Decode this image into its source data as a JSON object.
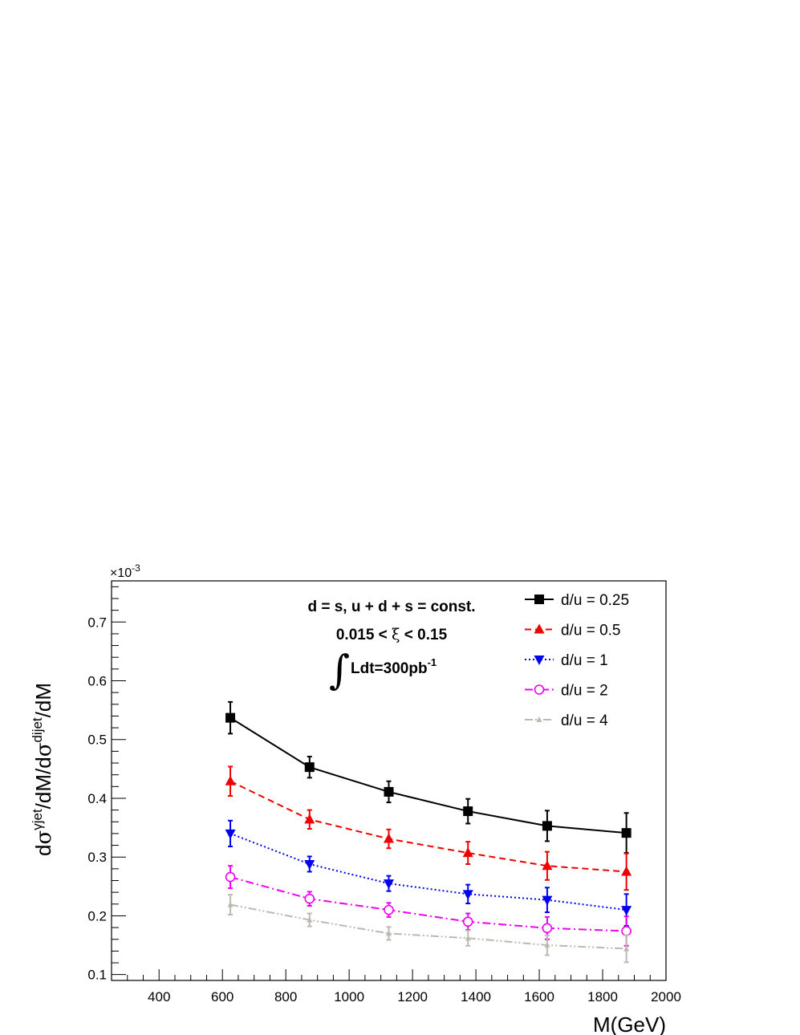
{
  "chart_data": {
    "type": "line",
    "title": "",
    "xlabel": "M(GeV)",
    "ylabel": {
      "d1": "d",
      "sigma1": "σ",
      "sup1": "γjet",
      "mid": "/dM/d",
      "sigma2": "σ",
      "sup2": "dijet",
      "end": "/dM"
    },
    "y_multiplier": {
      "base": "×10",
      "exp": "-3"
    },
    "xlim": [
      250,
      2000
    ],
    "ylim": [
      0.09,
      0.77
    ],
    "x_ticks": [
      400,
      600,
      800,
      1000,
      1200,
      1400,
      1600,
      1800,
      2000
    ],
    "y_ticks": [
      0.1,
      0.2,
      0.3,
      0.4,
      0.5,
      0.6,
      0.7
    ],
    "y_tick_labels": [
      "0.1",
      "0.2",
      "0.3",
      "0.4",
      "0.5",
      "0.6",
      "0.7"
    ],
    "x": [
      625,
      875,
      1125,
      1375,
      1625,
      1875
    ],
    "series": [
      {
        "name": "d/u = 0.25",
        "color": "#000000",
        "marker": "square",
        "dash": "",
        "values": [
          0.537,
          0.453,
          0.411,
          0.378,
          0.353,
          0.341
        ],
        "errors": [
          0.027,
          0.018,
          0.018,
          0.021,
          0.026,
          0.034
        ]
      },
      {
        "name": "d/u = 0.5",
        "color": "#ee0000",
        "marker": "triangle-up",
        "dash": "8,5",
        "values": [
          0.429,
          0.364,
          0.331,
          0.307,
          0.285,
          0.275
        ],
        "errors": [
          0.025,
          0.016,
          0.016,
          0.019,
          0.024,
          0.031
        ]
      },
      {
        "name": "d/u = 1",
        "color": "#0000ee",
        "marker": "triangle-down",
        "dash": "2,3",
        "values": [
          0.34,
          0.288,
          0.255,
          0.237,
          0.227,
          0.21
        ],
        "errors": [
          0.022,
          0.013,
          0.013,
          0.016,
          0.021,
          0.027
        ]
      },
      {
        "name": "d/u = 2",
        "color": "#ee00ee",
        "marker": "circle-open",
        "dash": "10,4,2,4",
        "values": [
          0.266,
          0.229,
          0.21,
          0.19,
          0.179,
          0.174
        ],
        "errors": [
          0.019,
          0.012,
          0.012,
          0.014,
          0.019,
          0.025
        ]
      },
      {
        "name": "d/u = 4",
        "color": "#bdb8b2",
        "marker": "triangle-small",
        "dash": "10,3,2,3,2,3",
        "values": [
          0.219,
          0.193,
          0.17,
          0.162,
          0.15,
          0.144
        ],
        "errors": [
          0.017,
          0.011,
          0.011,
          0.013,
          0.017,
          0.023
        ]
      }
    ],
    "legend_position": "top-right",
    "annotations": {
      "line1": "d = s, u + d + s = const.",
      "line2_pre": "0.015 < ",
      "line2_xi": "ξ",
      "line2_post": " < 0.15",
      "integral": "∫",
      "line3": "Ldt=300pb",
      "line3_sup": "-1"
    },
    "grid": false
  }
}
